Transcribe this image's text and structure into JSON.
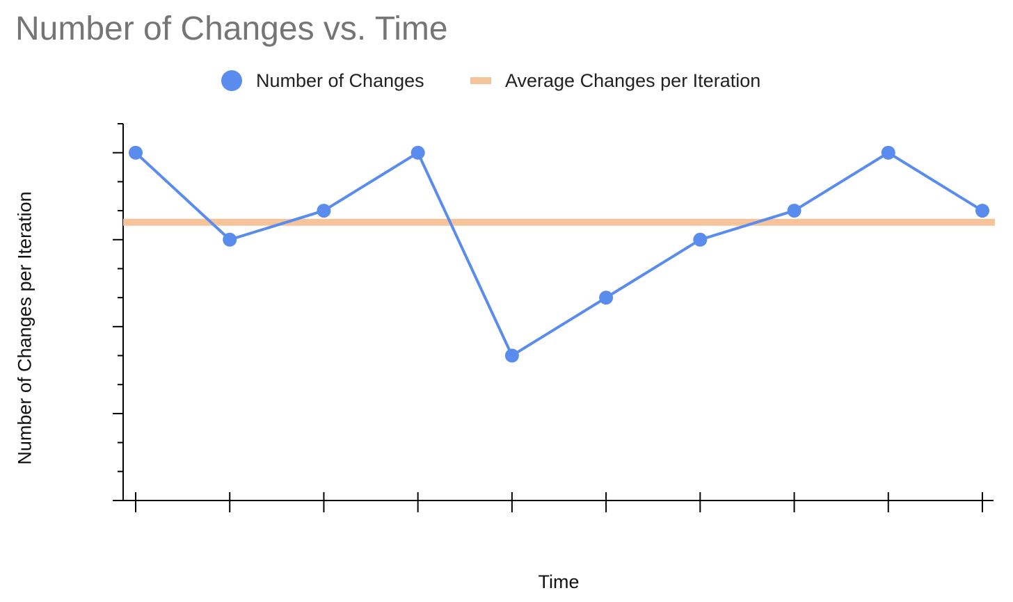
{
  "chart_data": {
    "type": "line",
    "title": "Number of Changes vs. Time",
    "xlabel": "Time",
    "ylabel": "Number of Changes per Iteration",
    "x": [
      1,
      2,
      3,
      4,
      5,
      6,
      7,
      8,
      9,
      10
    ],
    "series": [
      {
        "name": "Number of Changes",
        "values": [
          8,
          5,
          6,
          8,
          1,
          3,
          5,
          6,
          8,
          6
        ],
        "color": "#5a8ced"
      },
      {
        "name": "Average Changes per Iteration",
        "constant": 5.6,
        "color": "#f6c49b"
      }
    ],
    "ylim": [
      -4,
      9
    ],
    "grid": false,
    "legend": "top",
    "tick_labels": "none"
  }
}
